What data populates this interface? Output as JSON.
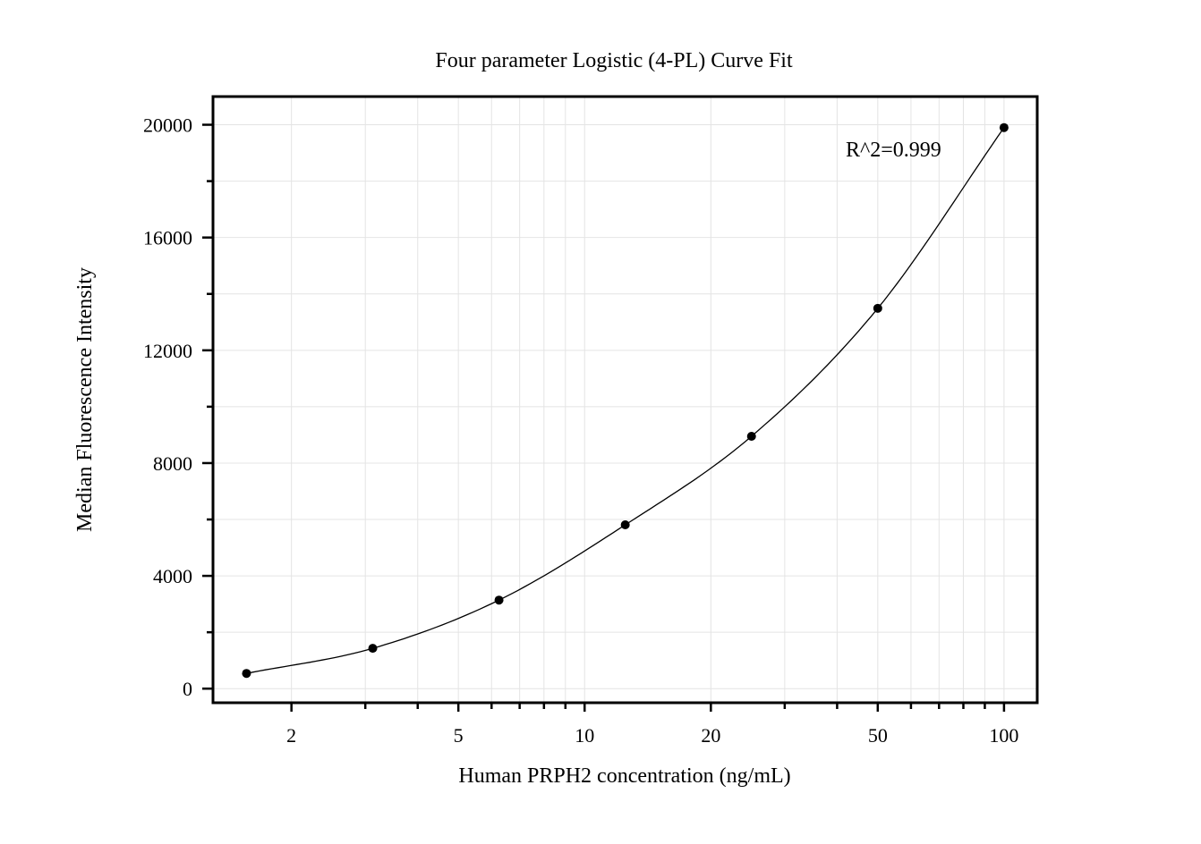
{
  "chart_data": {
    "type": "scatter",
    "title": "Four parameter Logistic (4-PL) Curve Fit",
    "xlabel": "Human PRPH2 concentration (ng/mL)",
    "ylabel": "Median Fluorescence Intensity",
    "x_scale": "log",
    "xlim": [
      1.3,
      120
    ],
    "ylim": [
      -500,
      21000
    ],
    "x_ticks": [
      2,
      5,
      10,
      20,
      50,
      100
    ],
    "x_tick_labels": [
      "2",
      "5",
      "10",
      "20",
      "50",
      "100"
    ],
    "y_ticks": [
      0,
      4000,
      8000,
      12000,
      16000,
      20000
    ],
    "y_tick_labels": [
      "0",
      "4000",
      "8000",
      "12000",
      "16000",
      "20000"
    ],
    "grid": true,
    "annotation": "R^2=0.999",
    "series": [
      {
        "x": [
          1.5625,
          3.125,
          6.25,
          12.5,
          25,
          50,
          100
        ],
        "y": [
          540,
          1430,
          3140,
          5810,
          8950,
          13490,
          19900
        ],
        "fit": "4-PL curve"
      }
    ],
    "colors": {
      "points": "#000000",
      "curve": "#000000",
      "grid": "#e4e4e4"
    }
  }
}
